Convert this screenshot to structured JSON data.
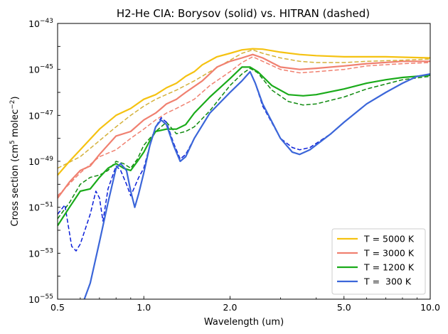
{
  "chart_data": {
    "type": "line",
    "title": "H2-He CIA:  Borysov (solid) vs. HITRAN (dashed)",
    "xlabel": "Wavelength (um)",
    "ylabel_base": "Cross section (cm",
    "ylabel_sup1": "5",
    "ylabel_mid": " molec",
    "ylabel_sup2": "−2",
    "ylabel_end": ")",
    "x_scale": "log",
    "y_scale": "log",
    "xlim": [
      0.5,
      10.0
    ],
    "ylim_exp": [
      -55,
      -43
    ],
    "x_ticks": [
      {
        "value": 0.5,
        "label": "0.5"
      },
      {
        "value": 1.0,
        "label": "1.0"
      },
      {
        "value": 2.0,
        "label": "2.0"
      },
      {
        "value": 5.0,
        "label": "5.0"
      },
      {
        "value": 10.0,
        "label": "10.0"
      }
    ],
    "y_ticks": [
      {
        "exp": -55,
        "base": "10",
        "sup": "−55"
      },
      {
        "exp": -53,
        "base": "10",
        "sup": "−53"
      },
      {
        "exp": -51,
        "base": "10",
        "sup": "−51"
      },
      {
        "exp": -49,
        "base": "10",
        "sup": "−49"
      },
      {
        "exp": -47,
        "base": "10",
        "sup": "−47"
      },
      {
        "exp": -45,
        "base": "10",
        "sup": "−45"
      },
      {
        "exp": -43,
        "base": "10",
        "sup": "−43"
      }
    ],
    "legend_position": "bottom-right",
    "series": [
      {
        "name": "T = 5000 K",
        "color": "#f5c211",
        "dashed_color": "#d4b13a",
        "solid": [
          [
            0.5,
            -49.6
          ],
          [
            0.55,
            -49.0
          ],
          [
            0.6,
            -48.5
          ],
          [
            0.7,
            -47.6
          ],
          [
            0.8,
            -47.0
          ],
          [
            0.9,
            -46.7
          ],
          [
            1.0,
            -46.3
          ],
          [
            1.1,
            -46.1
          ],
          [
            1.2,
            -45.8
          ],
          [
            1.3,
            -45.6
          ],
          [
            1.4,
            -45.3
          ],
          [
            1.5,
            -45.1
          ],
          [
            1.6,
            -44.8
          ],
          [
            1.8,
            -44.45
          ],
          [
            2.0,
            -44.3
          ],
          [
            2.2,
            -44.15
          ],
          [
            2.4,
            -44.1
          ],
          [
            2.6,
            -44.12
          ],
          [
            3.0,
            -44.25
          ],
          [
            3.5,
            -44.35
          ],
          [
            4.0,
            -44.4
          ],
          [
            5.0,
            -44.45
          ],
          [
            6.0,
            -44.45
          ],
          [
            7.0,
            -44.45
          ],
          [
            8.0,
            -44.47
          ],
          [
            10.0,
            -44.5
          ]
        ],
        "dashed": [
          [
            0.5,
            -49.3
          ],
          [
            0.6,
            -48.8
          ],
          [
            0.7,
            -48.1
          ],
          [
            0.8,
            -47.5
          ],
          [
            0.9,
            -47.0
          ],
          [
            1.0,
            -46.6
          ],
          [
            1.1,
            -46.3
          ],
          [
            1.3,
            -45.9
          ],
          [
            1.5,
            -45.5
          ],
          [
            1.7,
            -45.1
          ],
          [
            2.0,
            -44.6
          ],
          [
            2.2,
            -44.3
          ],
          [
            2.4,
            -44.15
          ],
          [
            2.6,
            -44.3
          ],
          [
            3.0,
            -44.5
          ],
          [
            3.5,
            -44.65
          ],
          [
            4.0,
            -44.7
          ],
          [
            5.0,
            -44.7
          ],
          [
            6.0,
            -44.65
          ],
          [
            8.0,
            -44.6
          ],
          [
            10.0,
            -44.55
          ]
        ]
      },
      {
        "name": "T = 3000 K",
        "color": "#f08070",
        "dashed_color": "#f08070",
        "solid": [
          [
            0.5,
            -50.6
          ],
          [
            0.55,
            -49.9
          ],
          [
            0.6,
            -49.4
          ],
          [
            0.65,
            -49.2
          ],
          [
            0.7,
            -48.7
          ],
          [
            0.8,
            -47.9
          ],
          [
            0.9,
            -47.7
          ],
          [
            1.0,
            -47.2
          ],
          [
            1.1,
            -46.9
          ],
          [
            1.15,
            -46.7
          ],
          [
            1.2,
            -46.5
          ],
          [
            1.3,
            -46.3
          ],
          [
            1.4,
            -46.0
          ],
          [
            1.6,
            -45.5
          ],
          [
            1.8,
            -44.9
          ],
          [
            2.0,
            -44.65
          ],
          [
            2.2,
            -44.5
          ],
          [
            2.4,
            -44.35
          ],
          [
            2.6,
            -44.5
          ],
          [
            3.0,
            -44.9
          ],
          [
            3.5,
            -45.0
          ],
          [
            4.0,
            -44.95
          ],
          [
            5.0,
            -44.85
          ],
          [
            6.0,
            -44.75
          ],
          [
            8.0,
            -44.65
          ],
          [
            10.0,
            -44.65
          ]
        ],
        "dashed": [
          [
            0.5,
            -50.5
          ],
          [
            0.6,
            -49.5
          ],
          [
            0.7,
            -48.8
          ],
          [
            0.8,
            -48.5
          ],
          [
            0.9,
            -48.0
          ],
          [
            1.0,
            -47.6
          ],
          [
            1.1,
            -47.2
          ],
          [
            1.2,
            -46.9
          ],
          [
            1.3,
            -46.7
          ],
          [
            1.5,
            -46.3
          ],
          [
            1.7,
            -45.7
          ],
          [
            2.0,
            -45.1
          ],
          [
            2.2,
            -44.7
          ],
          [
            2.4,
            -44.45
          ],
          [
            2.6,
            -44.65
          ],
          [
            3.0,
            -45.0
          ],
          [
            3.5,
            -45.15
          ],
          [
            4.0,
            -45.1
          ],
          [
            5.0,
            -45.0
          ],
          [
            6.0,
            -44.85
          ],
          [
            8.0,
            -44.75
          ],
          [
            10.0,
            -44.7
          ]
        ]
      },
      {
        "name": "T = 1200 K",
        "color": "#1aab1a",
        "dashed_color": "#0f8a0f",
        "solid": [
          [
            0.5,
            -51.8
          ],
          [
            0.55,
            -51.0
          ],
          [
            0.6,
            -50.3
          ],
          [
            0.65,
            -50.2
          ],
          [
            0.7,
            -49.7
          ],
          [
            0.75,
            -49.3
          ],
          [
            0.8,
            -49.1
          ],
          [
            0.85,
            -49.3
          ],
          [
            0.9,
            -49.4
          ],
          [
            0.95,
            -49.0
          ],
          [
            1.0,
            -48.6
          ],
          [
            1.05,
            -48.1
          ],
          [
            1.1,
            -47.7
          ],
          [
            1.2,
            -47.6
          ],
          [
            1.3,
            -47.6
          ],
          [
            1.4,
            -47.4
          ],
          [
            1.5,
            -46.9
          ],
          [
            1.7,
            -46.2
          ],
          [
            2.0,
            -45.4
          ],
          [
            2.2,
            -44.9
          ],
          [
            2.35,
            -44.9
          ],
          [
            2.5,
            -45.1
          ],
          [
            2.8,
            -45.7
          ],
          [
            3.2,
            -46.1
          ],
          [
            3.6,
            -46.15
          ],
          [
            4.0,
            -46.1
          ],
          [
            5.0,
            -45.85
          ],
          [
            6.0,
            -45.6
          ],
          [
            7.0,
            -45.45
          ],
          [
            8.0,
            -45.35
          ],
          [
            10.0,
            -45.25
          ]
        ],
        "dashed": [
          [
            0.5,
            -51.5
          ],
          [
            0.55,
            -50.8
          ],
          [
            0.6,
            -50.0
          ],
          [
            0.65,
            -49.7
          ],
          [
            0.7,
            -49.6
          ],
          [
            0.75,
            -49.4
          ],
          [
            0.8,
            -49.0
          ],
          [
            0.85,
            -49.1
          ],
          [
            0.9,
            -49.3
          ],
          [
            0.95,
            -48.9
          ],
          [
            1.0,
            -48.3
          ],
          [
            1.1,
            -47.7
          ],
          [
            1.2,
            -47.3
          ],
          [
            1.3,
            -47.8
          ],
          [
            1.4,
            -47.7
          ],
          [
            1.5,
            -47.5
          ],
          [
            1.7,
            -46.8
          ],
          [
            2.0,
            -45.7
          ],
          [
            2.2,
            -45.2
          ],
          [
            2.35,
            -44.95
          ],
          [
            2.5,
            -45.15
          ],
          [
            2.8,
            -45.9
          ],
          [
            3.2,
            -46.4
          ],
          [
            3.6,
            -46.55
          ],
          [
            4.0,
            -46.5
          ],
          [
            5.0,
            -46.2
          ],
          [
            6.0,
            -45.85
          ],
          [
            8.0,
            -45.45
          ],
          [
            10.0,
            -45.3
          ]
        ]
      },
      {
        "name": "T =  300 K",
        "color": "#3b66d9",
        "dashed_color": "#0b1fd9",
        "solid": [
          [
            0.62,
            -55.0
          ],
          [
            0.65,
            -54.3
          ],
          [
            0.7,
            -52.5
          ],
          [
            0.75,
            -50.8
          ],
          [
            0.8,
            -49.3
          ],
          [
            0.83,
            -49.1
          ],
          [
            0.87,
            -49.4
          ],
          [
            0.9,
            -50.3
          ],
          [
            0.93,
            -51.0
          ],
          [
            0.96,
            -50.4
          ],
          [
            1.0,
            -49.5
          ],
          [
            1.05,
            -48.3
          ],
          [
            1.1,
            -47.5
          ],
          [
            1.15,
            -47.2
          ],
          [
            1.2,
            -47.4
          ],
          [
            1.27,
            -48.3
          ],
          [
            1.34,
            -49.0
          ],
          [
            1.4,
            -48.8
          ],
          [
            1.5,
            -48.0
          ],
          [
            1.7,
            -46.9
          ],
          [
            2.0,
            -46.0
          ],
          [
            2.2,
            -45.5
          ],
          [
            2.35,
            -45.1
          ],
          [
            2.45,
            -45.6
          ],
          [
            2.6,
            -46.5
          ],
          [
            3.0,
            -48.0
          ],
          [
            3.3,
            -48.6
          ],
          [
            3.5,
            -48.7
          ],
          [
            3.8,
            -48.5
          ],
          [
            4.5,
            -47.8
          ],
          [
            5.0,
            -47.3
          ],
          [
            6.0,
            -46.5
          ],
          [
            7.0,
            -46.0
          ],
          [
            8.0,
            -45.6
          ],
          [
            9.0,
            -45.3
          ],
          [
            10.0,
            -45.2
          ]
        ],
        "dashed": [
          [
            0.5,
            -51.3
          ],
          [
            0.53,
            -50.9
          ],
          [
            0.56,
            -52.7
          ],
          [
            0.58,
            -52.9
          ],
          [
            0.6,
            -52.6
          ],
          [
            0.65,
            -51.3
          ],
          [
            0.68,
            -50.3
          ],
          [
            0.7,
            -50.6
          ],
          [
            0.72,
            -51.6
          ],
          [
            0.75,
            -50.2
          ],
          [
            0.8,
            -49.2
          ],
          [
            0.83,
            -49.4
          ],
          [
            0.87,
            -50.0
          ],
          [
            0.9,
            -50.5
          ],
          [
            0.93,
            -50.1
          ],
          [
            0.96,
            -49.7
          ],
          [
            1.0,
            -49.3
          ],
          [
            1.05,
            -48.3
          ],
          [
            1.1,
            -47.5
          ],
          [
            1.15,
            -47.1
          ],
          [
            1.2,
            -47.3
          ],
          [
            1.27,
            -48.2
          ],
          [
            1.34,
            -48.9
          ],
          [
            1.4,
            -48.7
          ],
          [
            1.5,
            -48.0
          ],
          [
            1.7,
            -46.9
          ],
          [
            2.0,
            -46.0
          ],
          [
            2.2,
            -45.5
          ],
          [
            2.35,
            -45.1
          ],
          [
            2.45,
            -45.6
          ],
          [
            2.6,
            -46.6
          ],
          [
            3.0,
            -48.0
          ],
          [
            3.3,
            -48.4
          ],
          [
            3.5,
            -48.5
          ],
          [
            3.8,
            -48.4
          ],
          [
            4.5,
            -47.8
          ],
          [
            5.0,
            -47.3
          ],
          [
            6.0,
            -46.5
          ],
          [
            7.0,
            -46.0
          ],
          [
            8.0,
            -45.6
          ],
          [
            9.0,
            -45.3
          ],
          [
            10.0,
            -45.2
          ]
        ]
      }
    ]
  }
}
